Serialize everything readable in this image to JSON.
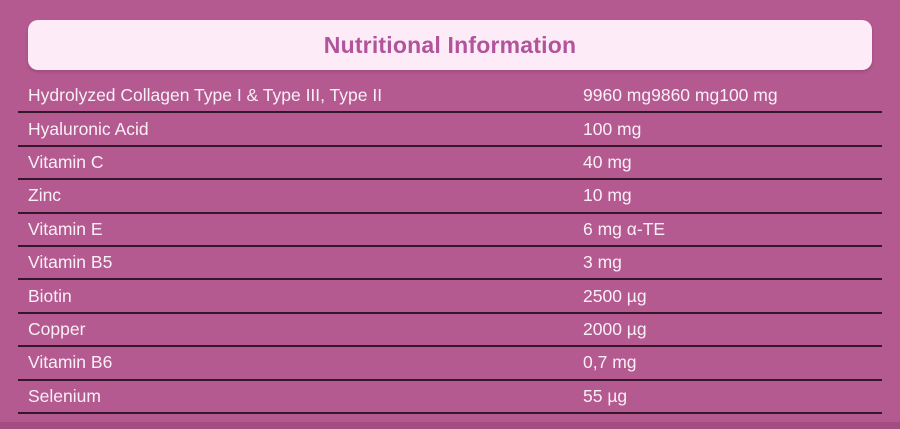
{
  "page": {
    "background_color": "#b45a90",
    "bottom_strip_color": "#a34e81"
  },
  "header": {
    "title": "Nutritional Information",
    "background_color": "#fdecf7",
    "text_color": "#b1549c"
  },
  "table": {
    "text_color": "#f9eff6",
    "divider_color": "#200a1a",
    "rows": [
      {
        "label": "Hydrolyzed Collagen Type I & Type III, Type II",
        "value": "9960 mg9860 mg100 mg"
      },
      {
        "label": "Hyaluronic Acid",
        "value": "100 mg"
      },
      {
        "label": "Vitamin C",
        "value": "40 mg"
      },
      {
        "label": "Zinc",
        "value": "10 mg"
      },
      {
        "label": "Vitamin E",
        "value": "6 mg α-TE"
      },
      {
        "label": "Vitamin B5",
        "value": "3 mg"
      },
      {
        "label": "Biotin",
        "value": "2500 µg"
      },
      {
        "label": "Copper",
        "value": "2000 µg"
      },
      {
        "label": "Vitamin B6",
        "value": "0,7 mg"
      },
      {
        "label": "Selenium",
        "value": "55 µg"
      }
    ]
  }
}
